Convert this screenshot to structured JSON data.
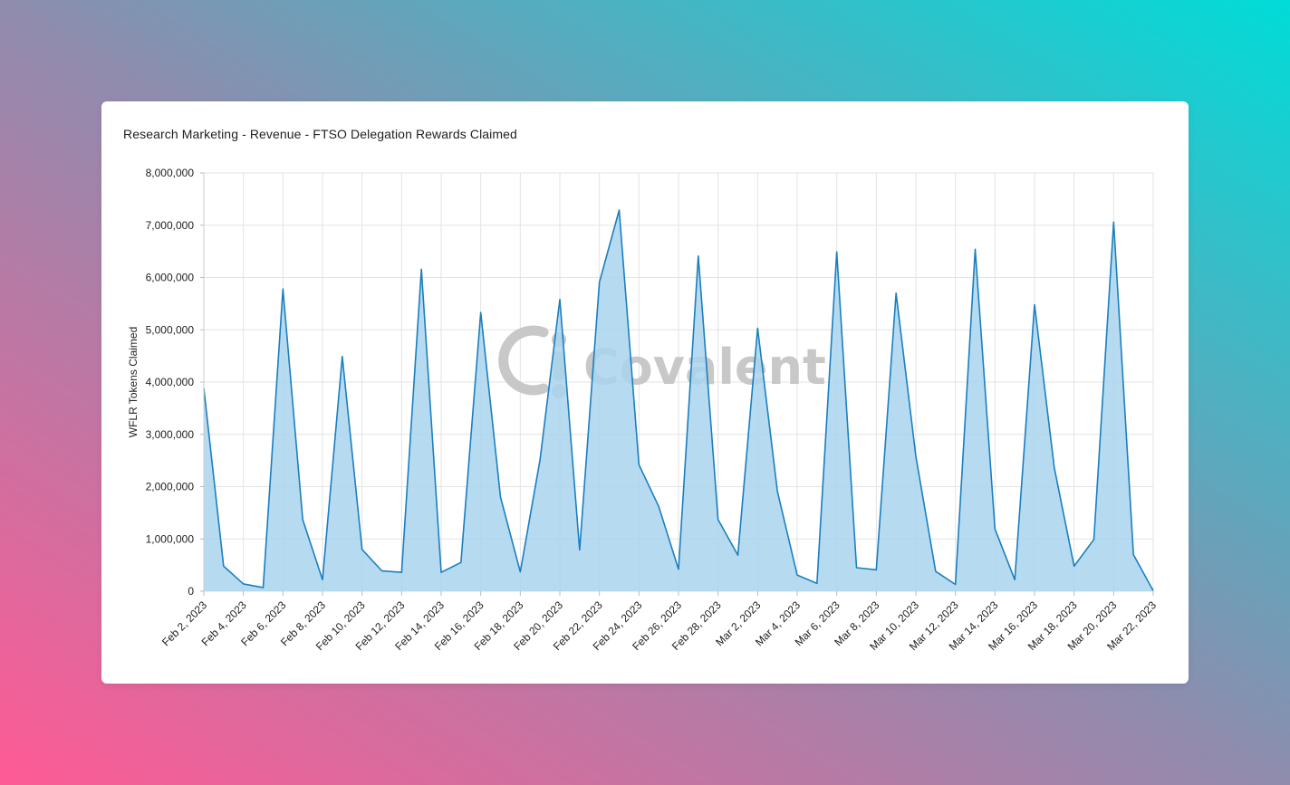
{
  "card": {
    "title": "Research Marketing - Revenue - FTSO Delegation Rewards Claimed"
  },
  "watermark": {
    "text": "Covalent"
  },
  "colors": {
    "line": "#1a7fbf",
    "fill": "#a9d5ee",
    "grid": "#e3e3e3",
    "text": "#222222"
  },
  "chart_data": {
    "type": "area",
    "title": "Research Marketing - Revenue - FTSO Delegation Rewards Claimed",
    "xlabel": "",
    "ylabel": "WFLR Tokens Claimed",
    "ylim": [
      0,
      8000000
    ],
    "grid": true,
    "y_ticks": [
      0,
      1000000,
      2000000,
      3000000,
      4000000,
      5000000,
      6000000,
      7000000,
      8000000
    ],
    "y_tick_labels": [
      "0",
      "1,000,000",
      "2,000,000",
      "3,000,000",
      "4,000,000",
      "5,000,000",
      "6,000,000",
      "7,000,000",
      "8,000,000"
    ],
    "x_tick_labels": [
      "Feb 2, 2023",
      "Feb 4, 2023",
      "Feb 6, 2023",
      "Feb 8, 2023",
      "Feb 10, 2023",
      "Feb 12, 2023",
      "Feb 14, 2023",
      "Feb 16, 2023",
      "Feb 18, 2023",
      "Feb 20, 2023",
      "Feb 22, 2023",
      "Feb 24, 2023",
      "Feb 26, 2023",
      "Feb 28, 2023",
      "Mar 2, 2023",
      "Mar 4, 2023",
      "Mar 6, 2023",
      "Mar 8, 2023",
      "Mar 10, 2023",
      "Mar 12, 2023",
      "Mar 14, 2023",
      "Mar 16, 2023",
      "Mar 18, 2023",
      "Mar 20, 2023",
      "Mar 22, 2023"
    ],
    "x": [
      "2023-02-02",
      "2023-02-03",
      "2023-02-04",
      "2023-02-05",
      "2023-02-06",
      "2023-02-07",
      "2023-02-08",
      "2023-02-09",
      "2023-02-10",
      "2023-02-11",
      "2023-02-12",
      "2023-02-13",
      "2023-02-14",
      "2023-02-15",
      "2023-02-16",
      "2023-02-17",
      "2023-02-18",
      "2023-02-19",
      "2023-02-20",
      "2023-02-21",
      "2023-02-22",
      "2023-02-23",
      "2023-02-24",
      "2023-02-25",
      "2023-02-26",
      "2023-02-27",
      "2023-02-28",
      "2023-03-01",
      "2023-03-02",
      "2023-03-03",
      "2023-03-04",
      "2023-03-05",
      "2023-03-06",
      "2023-03-07",
      "2023-03-08",
      "2023-03-09",
      "2023-03-10",
      "2023-03-11",
      "2023-03-12",
      "2023-03-13",
      "2023-03-14",
      "2023-03-15",
      "2023-03-16",
      "2023-03-17",
      "2023-03-18",
      "2023-03-19",
      "2023-03-20",
      "2023-03-21",
      "2023-03-22"
    ],
    "series": [
      {
        "values": [
          3880000,
          480000,
          140000,
          70000,
          5780000,
          1370000,
          220000,
          4490000,
          800000,
          390000,
          360000,
          6160000,
          360000,
          550000,
          5330000,
          1800000,
          370000,
          2520000,
          5580000,
          790000,
          5910000,
          7290000,
          2420000,
          1620000,
          420000,
          6410000,
          1370000,
          690000,
          5030000,
          1910000,
          310000,
          150000,
          6490000,
          450000,
          410000,
          5700000,
          2580000,
          380000,
          130000,
          6540000,
          1190000,
          220000,
          5480000,
          2360000,
          480000,
          990000,
          7060000,
          700000,
          10000
        ]
      }
    ]
  }
}
